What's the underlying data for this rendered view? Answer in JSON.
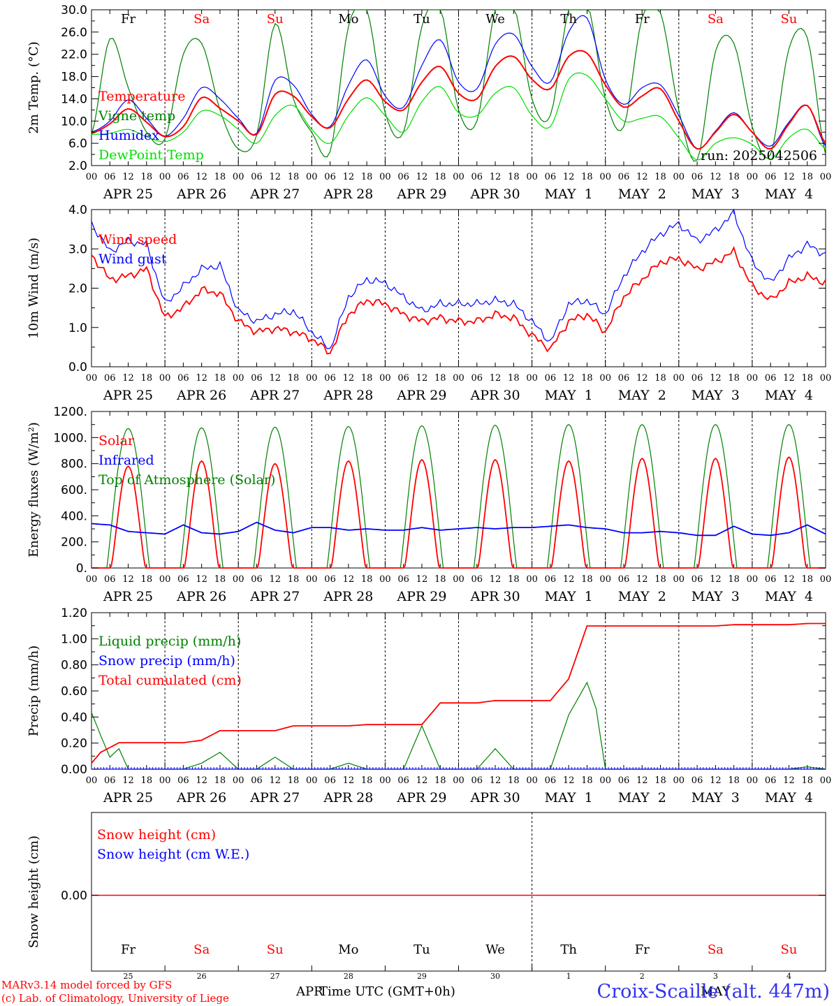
{
  "colors": {
    "red": "#ff0000",
    "green": "#008000",
    "blue": "#0000ff",
    "lightgreen": "#00dd00",
    "black": "#000000",
    "station": "#3333ee"
  },
  "x_hour_labels": [
    "00",
    "06",
    "12",
    "18"
  ],
  "x_end_label": "00",
  "dates": [
    "APR 25",
    "APR 26",
    "APR 27",
    "APR 28",
    "APR 29",
    "APR 30",
    "MAY  1",
    "MAY  2",
    "MAY  3",
    "MAY  4"
  ],
  "weekdays": [
    {
      "label": "Fr",
      "weekend": false
    },
    {
      "label": "Sa",
      "weekend": true
    },
    {
      "label": "Su",
      "weekend": true
    },
    {
      "label": "Mo",
      "weekend": false
    },
    {
      "label": "Tu",
      "weekend": false
    },
    {
      "label": "We",
      "weekend": false
    },
    {
      "label": "Th",
      "weekend": false
    },
    {
      "label": "Fr",
      "weekend": false
    },
    {
      "label": "Sa",
      "weekend": true
    },
    {
      "label": "Su",
      "weekend": true
    }
  ],
  "day_numbers": [
    "25",
    "26",
    "27",
    "28",
    "29",
    "30",
    "1",
    "2",
    "3",
    "4"
  ],
  "footer": {
    "model": "MARv3.14 model forced by GFS",
    "lab": "(c) Lab. of Climatology, University of Liege",
    "month_left": "APR",
    "xlabel": "Time UTC (GMT+0h)",
    "month_right": "MAY",
    "station": "Croix-Scaille (alt. 447m)"
  },
  "chart_data": [
    {
      "type": "line",
      "ylabel": "2m Temp. (°C)",
      "ylim": [
        2.0,
        30.0
      ],
      "yticks": [
        "2.0",
        "6.0",
        "10.0",
        "14.0",
        "18.0",
        "22.0",
        "26.0",
        "30.0"
      ],
      "run_label": "run: 2025042506",
      "x_hours": [
        0,
        6,
        12,
        18,
        24,
        30,
        36,
        42,
        48,
        54,
        60,
        66,
        72,
        78,
        84,
        90,
        96,
        102,
        108,
        114,
        120,
        126,
        132,
        138,
        144,
        150,
        156,
        162,
        168,
        174,
        180,
        186,
        192,
        198,
        204,
        210,
        216,
        222,
        228,
        234,
        240
      ],
      "series": [
        {
          "name": "Temperature",
          "color": "red",
          "values": [
            7.8,
            9.5,
            12.2,
            9.8,
            7.2,
            9.0,
            14.2,
            12.3,
            10.0,
            7.6,
            14.8,
            14.5,
            10.8,
            8.8,
            14.0,
            17.4,
            13.5,
            12.0,
            17.0,
            19.8,
            15.0,
            14.0,
            19.8,
            21.6,
            17.5,
            15.8,
            21.6,
            22.2,
            16.5,
            12.5,
            14.5,
            15.8,
            10.0,
            5.0,
            8.0,
            11.2,
            8.0,
            5.0,
            9.5,
            12.8,
            6.0
          ]
        },
        {
          "name": "Vigne temp",
          "color": "green",
          "values": [
            7.5,
            24.8,
            16.0,
            8.0,
            6.8,
            22.0,
            24.0,
            12.0,
            5.0,
            7.5,
            27.5,
            14.0,
            8.0,
            4.5,
            27.0,
            30.0,
            11.5,
            8.0,
            27.0,
            30.5,
            12.0,
            10.0,
            30.0,
            31.0,
            14.0,
            11.0,
            30.0,
            31.5,
            14.0,
            9.0,
            28.5,
            29.5,
            12.0,
            3.0,
            22.5,
            24.0,
            9.0,
            4.0,
            23.0,
            25.0,
            4.0
          ]
        },
        {
          "name": "Humidex",
          "color": "blue",
          "values": [
            8.0,
            10.0,
            13.8,
            10.5,
            7.3,
            10.5,
            16.0,
            14.0,
            10.5,
            7.8,
            17.3,
            16.5,
            11.2,
            9.0,
            16.5,
            21.0,
            14.5,
            12.5,
            20.0,
            24.6,
            17.0,
            15.8,
            23.8,
            25.6,
            19.8,
            17.0,
            26.0,
            28.5,
            17.5,
            13.0,
            16.0,
            16.5,
            11.0,
            5.0,
            8.2,
            11.5,
            8.0,
            5.5,
            9.8,
            12.8,
            5.5
          ]
        },
        {
          "name": "DewPoint Temp",
          "color": "lightgreen",
          "values": [
            7.6,
            7.8,
            8.5,
            7.2,
            6.3,
            8.0,
            11.8,
            11.0,
            8.5,
            6.0,
            11.0,
            12.8,
            8.5,
            6.0,
            11.0,
            14.2,
            11.0,
            8.0,
            13.5,
            16.2,
            11.5,
            11.0,
            15.0,
            16.0,
            11.0,
            9.0,
            17.5,
            18.2,
            14.0,
            10.0,
            10.5,
            10.8,
            7.0,
            3.0,
            6.0,
            7.0,
            5.8,
            3.2,
            7.0,
            8.5,
            5.0
          ]
        }
      ]
    },
    {
      "type": "line",
      "ylabel": "10m Wind (m/s)",
      "ylim": [
        0.0,
        4.5
      ],
      "yticks": [
        "0.0",
        "1.0",
        "2.0",
        "3.0",
        "4.0"
      ],
      "x_hours": [
        0,
        6,
        12,
        18,
        24,
        30,
        36,
        42,
        48,
        54,
        60,
        66,
        72,
        78,
        84,
        90,
        96,
        102,
        108,
        114,
        120,
        126,
        132,
        138,
        144,
        150,
        156,
        162,
        168,
        174,
        180,
        186,
        192,
        198,
        204,
        210,
        216,
        222,
        228,
        234,
        240
      ],
      "series": [
        {
          "name": "Wind speed",
          "color": "red",
          "values": [
            3.2,
            2.5,
            2.6,
            2.8,
            1.4,
            1.7,
            2.2,
            2.1,
            1.3,
            1.0,
            1.1,
            1.0,
            0.8,
            0.4,
            1.5,
            1.9,
            1.8,
            1.5,
            1.3,
            1.4,
            1.3,
            1.3,
            1.5,
            1.4,
            0.9,
            0.5,
            1.3,
            1.5,
            1.0,
            2.0,
            2.5,
            3.0,
            3.1,
            2.8,
            3.0,
            3.3,
            2.3,
            1.9,
            2.4,
            2.6,
            2.4
          ]
        },
        {
          "name": "Wind gust",
          "color": "blue",
          "values": [
            4.1,
            3.3,
            3.6,
            3.5,
            1.8,
            2.3,
            2.8,
            2.9,
            1.6,
            1.3,
            1.5,
            1.6,
            1.0,
            0.5,
            2.0,
            2.5,
            2.4,
            2.0,
            1.6,
            1.8,
            1.8,
            1.8,
            1.9,
            1.8,
            1.3,
            0.7,
            1.8,
            1.9,
            1.5,
            2.6,
            3.3,
            3.8,
            4.1,
            3.6,
            3.9,
            4.4,
            3.0,
            2.4,
            3.1,
            3.5,
            3.2
          ]
        }
      ]
    },
    {
      "type": "line",
      "ylabel": "Energy fluxes (W/m²)",
      "ylim": [
        0,
        1200
      ],
      "yticks": [
        "0.",
        "200.",
        "400.",
        "600.",
        "800.",
        "1000.",
        "1200."
      ],
      "peaks": {
        "solar": [
          780,
          820,
          800,
          820,
          830,
          830,
          820,
          840,
          840,
          850
        ],
        "toa": [
          1070,
          1075,
          1080,
          1085,
          1090,
          1095,
          1100,
          1100,
          1100,
          1100
        ]
      },
      "infrared": [
        340,
        330,
        280,
        270,
        260,
        330,
        270,
        260,
        280,
        350,
        290,
        270,
        310,
        310,
        290,
        300,
        290,
        290,
        310,
        290,
        300,
        310,
        300,
        310,
        310,
        320,
        330,
        310,
        300,
        270,
        270,
        280,
        270,
        250,
        250,
        320,
        260,
        250,
        270,
        330,
        260
      ],
      "x_hours": [
        0,
        6,
        12,
        18,
        24,
        30,
        36,
        42,
        48,
        54,
        60,
        66,
        72,
        78,
        84,
        90,
        96,
        102,
        108,
        114,
        120,
        126,
        132,
        138,
        144,
        150,
        156,
        162,
        168,
        174,
        180,
        186,
        192,
        198,
        204,
        210,
        216,
        222,
        228,
        234,
        240
      ],
      "series": [
        {
          "name": "Solar",
          "color": "red"
        },
        {
          "name": "Infrared",
          "color": "blue"
        },
        {
          "name": "Top of Atmosphere (Solar)",
          "color": "green"
        }
      ]
    },
    {
      "type": "line",
      "ylabel": "Precip (mm/h)",
      "ylim": [
        0.0,
        1.3
      ],
      "yticks": [
        "0.00",
        "0.20",
        "0.40",
        "0.60",
        "0.80",
        "1.00",
        "1.20"
      ],
      "x_hours": [
        0,
        3,
        6,
        9,
        12,
        18,
        24,
        30,
        36,
        42,
        48,
        54,
        60,
        66,
        72,
        78,
        84,
        90,
        96,
        102,
        108,
        114,
        120,
        126,
        132,
        138,
        144,
        150,
        156,
        162,
        165,
        168,
        174,
        180,
        186,
        192,
        198,
        204,
        210,
        216,
        222,
        228,
        234,
        240
      ],
      "series": [
        {
          "name": "Liquid precip (mm/h)",
          "color": "green",
          "values": [
            0.47,
            0.28,
            0.1,
            0.17,
            0.0,
            0.0,
            0.0,
            0.0,
            0.05,
            0.14,
            0.0,
            0.0,
            0.1,
            0.0,
            0.0,
            0.0,
            0.05,
            0.0,
            0.0,
            0.0,
            0.36,
            0.0,
            0.0,
            0.0,
            0.17,
            0.0,
            0.0,
            0.0,
            0.45,
            0.72,
            0.5,
            0.0,
            0.0,
            0.0,
            0.0,
            0.0,
            0.0,
            0.0,
            0.0,
            0.0,
            0.0,
            0.0,
            0.02,
            0.0
          ]
        },
        {
          "name": "Snow precip (mm/h)",
          "color": "blue",
          "values": [
            0,
            0,
            0,
            0,
            0,
            0,
            0,
            0,
            0,
            0,
            0,
            0,
            0,
            0,
            0,
            0,
            0,
            0,
            0,
            0,
            0,
            0,
            0,
            0,
            0,
            0,
            0,
            0,
            0,
            0,
            0,
            0,
            0,
            0,
            0,
            0,
            0,
            0,
            0,
            0,
            0,
            0,
            0,
            0
          ]
        },
        {
          "name": "Total cumulated (cm)",
          "color": "red",
          "values": [
            0.05,
            0.14,
            0.18,
            0.22,
            0.22,
            0.22,
            0.22,
            0.22,
            0.24,
            0.32,
            0.32,
            0.32,
            0.32,
            0.36,
            0.36,
            0.36,
            0.36,
            0.37,
            0.37,
            0.37,
            0.37,
            0.55,
            0.55,
            0.55,
            0.57,
            0.57,
            0.57,
            0.57,
            0.75,
            1.19,
            1.19,
            1.19,
            1.19,
            1.19,
            1.19,
            1.19,
            1.19,
            1.19,
            1.2,
            1.2,
            1.2,
            1.2,
            1.21,
            1.21
          ]
        }
      ]
    },
    {
      "type": "line",
      "ylabel": "Snow height (cm)",
      "yticks": [
        "0.00"
      ],
      "x_hours": [
        0,
        240
      ],
      "series": [
        {
          "name": "Snow height (cm)",
          "color": "red",
          "values": [
            0,
            0
          ]
        },
        {
          "name": "Snow height (cm W.E.)",
          "color": "blue",
          "values": [
            0,
            0
          ]
        }
      ]
    }
  ]
}
